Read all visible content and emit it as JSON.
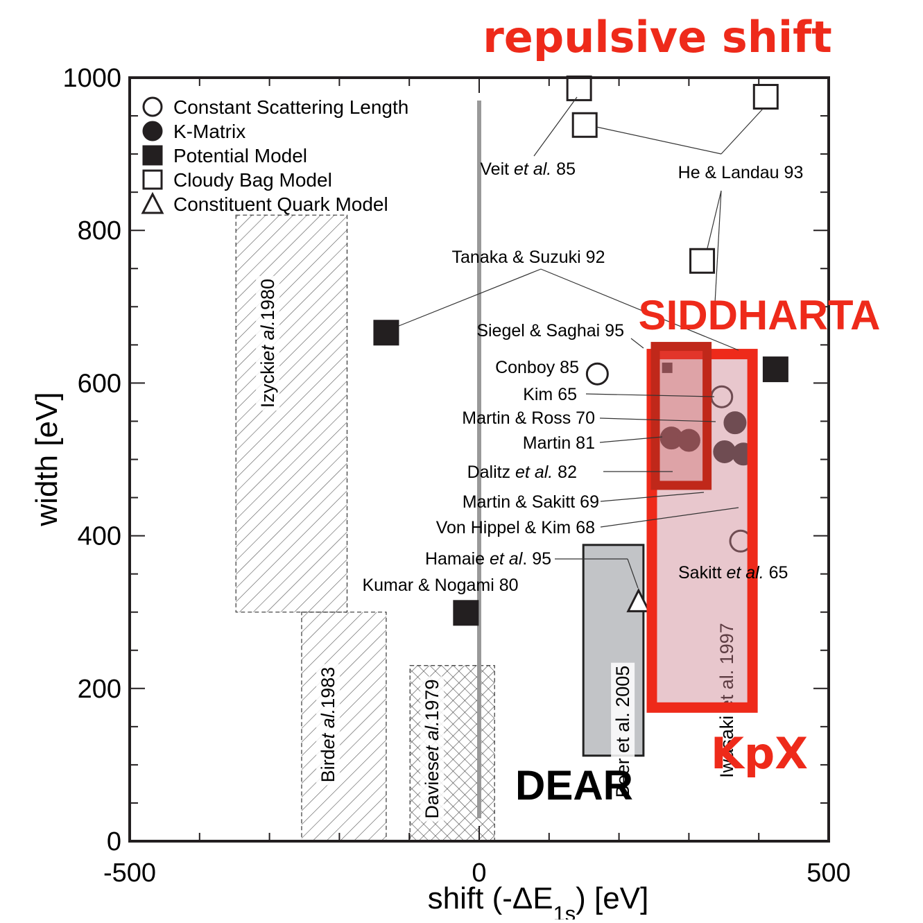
{
  "chart_data": {
    "type": "scatter",
    "title": "repulsive shift",
    "xlabel": [
      {
        "t": "shift (-ΔE"
      },
      {
        "t": "1s",
        "sub": true
      },
      {
        "t": ") [eV]"
      }
    ],
    "ylabel": [
      {
        "t": "width [eV]"
      }
    ],
    "xlim": [
      -500,
      500
    ],
    "ylim": [
      0,
      1000
    ],
    "xticks": [
      -500,
      0,
      500
    ],
    "yticks": [
      0,
      200,
      400,
      600,
      800,
      1000
    ],
    "xminor_ticks": [
      -400,
      -300,
      -200,
      -100,
      100,
      200,
      300,
      400
    ],
    "yminor_ticks": [
      50,
      100,
      150,
      250,
      300,
      350,
      450,
      500,
      550,
      650,
      700,
      750,
      850,
      900,
      950
    ],
    "series": [
      {
        "name": "Constant Scattering Length",
        "marker": "circle",
        "filled": false,
        "x": [
          169,
          347,
          374
        ],
        "values": [
          612,
          582,
          393
        ]
      },
      {
        "name": "K-Matrix",
        "marker": "circle",
        "filled": true,
        "x": [
          275,
          300,
          366,
          351,
          378
        ],
        "values": [
          528,
          525,
          548,
          510,
          507
        ]
      },
      {
        "name": "Potential Model",
        "marker": "square",
        "filled": true,
        "x": [
          -133,
          -19,
          424,
          269
        ],
        "values": [
          666,
          299,
          618,
          620
        ]
      },
      {
        "name": "Cloudy Bag Model",
        "marker": "square",
        "filled": false,
        "x": [
          143,
          151,
          410,
          319
        ],
        "values": [
          986,
          938,
          975,
          760
        ]
      },
      {
        "name": "Constituent Quark Model",
        "marker": "triangle",
        "filled": false,
        "x": [
          228
        ],
        "values": [
          313
        ]
      }
    ],
    "regions": [
      {
        "label": [
          {
            "t": "Izycki"
          },
          {
            "t": "et al.",
            "i": true
          },
          {
            "t": "1980"
          }
        ],
        "x": [
          -348,
          -189
        ],
        "y": [
          300,
          820
        ],
        "style": "hatch"
      },
      {
        "label": [
          {
            "t": "Bird"
          },
          {
            "t": "et al.",
            "i": true
          },
          {
            "t": "1983"
          }
        ],
        "x": [
          -254,
          -133
        ],
        "y": [
          0,
          300
        ],
        "style": "hatch"
      },
      {
        "label": [
          {
            "t": "Davies"
          },
          {
            "t": "et al.",
            "i": true
          },
          {
            "t": "1979"
          }
        ],
        "x": [
          -99,
          22
        ],
        "y": [
          0,
          230
        ],
        "style": "cross"
      },
      {
        "label": [
          {
            "t": "Beer et al. 2005"
          }
        ],
        "x": [
          149,
          235
        ],
        "y": [
          112,
          388
        ],
        "style": "grey"
      },
      {
        "label": [
          {
            "t": "Iwasaki et al. 1997"
          }
        ],
        "x": [
          247,
          391
        ],
        "y": [
          175,
          638
        ],
        "style": "kpx"
      },
      {
        "label": [],
        "x": [
          252,
          326
        ],
        "y": [
          466,
          648
        ],
        "style": "siddharta"
      }
    ],
    "zero_line": {
      "x": 0,
      "y": [
        30,
        970
      ]
    },
    "annotations": [
      [
        {
          "t": "Veit "
        },
        {
          "t": "et al.",
          "i": true
        },
        {
          "t": "  85"
        }
      ],
      [
        {
          "t": "He & Landau 93"
        }
      ],
      [
        {
          "t": "Tanaka & Suzuki 92"
        }
      ],
      [
        {
          "t": "Siegel & Saghai 95"
        }
      ],
      [
        {
          "t": "Conboy 85"
        }
      ],
      [
        {
          "t": "Kim 65"
        }
      ],
      [
        {
          "t": "Martin & Ross 70"
        }
      ],
      [
        {
          "t": "Martin 81"
        }
      ],
      [
        {
          "t": "Dalitz "
        },
        {
          "t": "et al.",
          "i": true
        },
        {
          "t": "  82"
        }
      ],
      [
        {
          "t": "Martin & Sakitt 69"
        }
      ],
      [
        {
          "t": "Von Hippel & Kim 68"
        }
      ],
      [
        {
          "t": "Hamaie "
        },
        {
          "t": "et al",
          "i": true
        },
        {
          "t": ".  95"
        }
      ],
      [
        {
          "t": "Kumar & Nogami 80"
        }
      ],
      [
        {
          "t": "Sakitt "
        },
        {
          "t": "et al.",
          "i": true
        },
        {
          "t": " 65"
        }
      ]
    ],
    "labels": {
      "siddharta": "SIDDHARTA",
      "kpx": "KpX",
      "dear": "DEAR"
    }
  }
}
